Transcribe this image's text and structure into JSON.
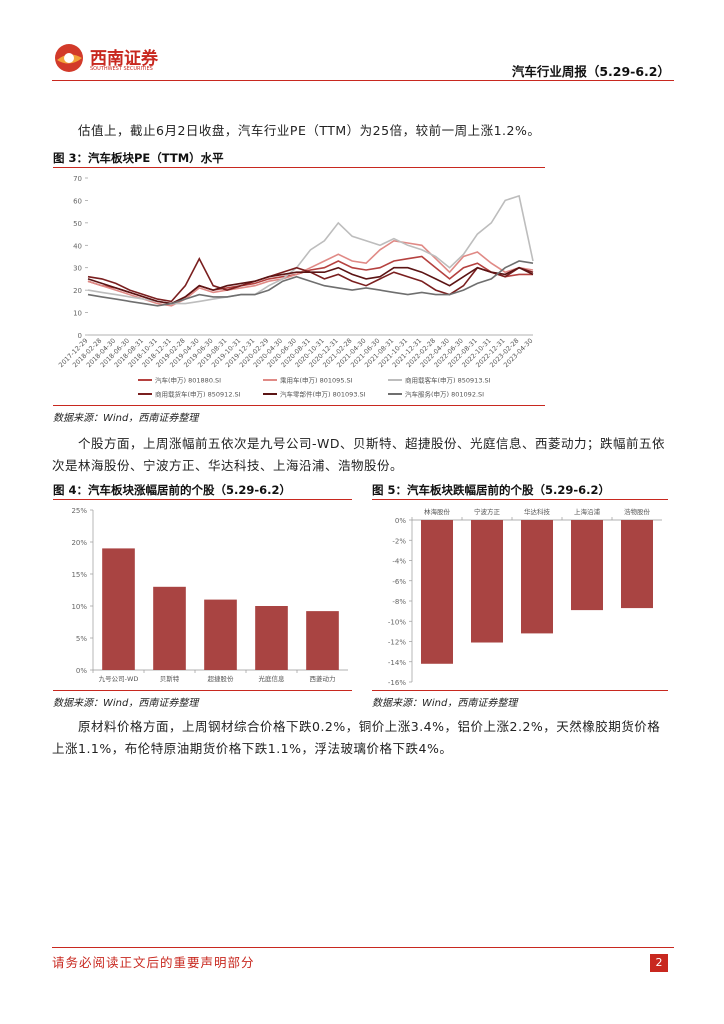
{
  "header": {
    "logo_cn": "西南证券",
    "logo_en": "SOUTHWEST SECURITIES",
    "report_title": "汽车行业周报（5.29-6.2）"
  },
  "paragraphs": [
    "估值上，截止6月2日收盘，汽车行业PE（TTM）为25倍，较前一周上涨1.2%。",
    "个股方面，上周涨幅前五依次是九号公司-WD、贝斯特、超捷股份、光庭信息、西菱动力；跌幅前五依次是林海股份、宁波方正、华达科技、上海沿浦、浩物股份。",
    "原材料价格方面，上周钢材综合价格下跌0.2%，铜价上涨3.4%，铝价上涨2.2%，天然橡胶期货价格上涨1.1%，布伦特原油期货价格下跌1.1%，浮法玻璃价格下跌4%。"
  ],
  "chart_data": [
    {
      "type": "line",
      "title": "图 3：汽车板块PE（TTM）水平",
      "source": "数据来源：Wind，西南证券整理",
      "categories": [
        "2017-12-29",
        "2018-02-28",
        "2018-04-30",
        "2018-06-30",
        "2018-08-31",
        "2018-10-31",
        "2018-12-31",
        "2019-02-28",
        "2019-04-30",
        "2019-06-30",
        "2019-08-31",
        "2019-10-31",
        "2019-12-31",
        "2020-02-29",
        "2020-04-30",
        "2020-06-30",
        "2020-08-31",
        "2020-10-31",
        "2020-12-31",
        "2021-02-28",
        "2021-04-30",
        "2021-06-30",
        "2021-08-31",
        "2021-10-31",
        "2021-12-31",
        "2022-02-28",
        "2022-04-30",
        "2022-06-30",
        "2022-08-31",
        "2022-10-31",
        "2022-12-31",
        "2023-02-28",
        "2023-04-30"
      ],
      "series": [
        {
          "name": "汽车(申万) 801880.SI",
          "color": "#b5413f",
          "values": [
            24,
            22,
            21,
            19,
            17,
            15,
            14,
            17,
            22,
            20,
            21,
            22,
            23,
            25,
            26,
            27,
            29,
            30,
            33,
            30,
            29,
            30,
            33,
            34,
            35,
            30,
            25,
            30,
            32,
            28,
            26,
            27,
            27
          ]
        },
        {
          "name": "乘用车(申万) 801095.SI",
          "color": "#e08a86",
          "values": [
            24,
            22,
            20,
            18,
            16,
            14,
            13,
            16,
            21,
            19,
            20,
            21,
            22,
            24,
            25,
            27,
            30,
            33,
            36,
            33,
            32,
            38,
            42,
            41,
            40,
            34,
            28,
            35,
            37,
            32,
            28,
            30,
            29
          ]
        },
        {
          "name": "商用载客车(申万) 850913.SI",
          "color": "#bdbdbd",
          "values": [
            20,
            19,
            18,
            17,
            16,
            15,
            14,
            14,
            15,
            16,
            17,
            18,
            18,
            22,
            25,
            30,
            38,
            42,
            50,
            44,
            42,
            40,
            43,
            40,
            38,
            35,
            30,
            36,
            45,
            50,
            60,
            62,
            33
          ]
        },
        {
          "name": "商用载货车(申万) 850912.SI",
          "color": "#7a1f1f",
          "values": [
            26,
            25,
            23,
            20,
            18,
            16,
            15,
            22,
            34,
            22,
            20,
            22,
            24,
            26,
            28,
            30,
            28,
            25,
            27,
            24,
            22,
            25,
            28,
            26,
            24,
            20,
            18,
            22,
            30,
            28,
            26,
            30,
            28
          ]
        },
        {
          "name": "汽车零部件(申万) 801093.SI",
          "color": "#5b1414",
          "values": [
            25,
            23,
            21,
            19,
            17,
            15,
            14,
            17,
            22,
            20,
            22,
            23,
            24,
            26,
            27,
            28,
            28,
            28,
            30,
            27,
            25,
            26,
            30,
            30,
            28,
            25,
            22,
            26,
            30,
            28,
            27,
            30,
            27
          ]
        },
        {
          "name": "汽车服务(申万) 801092.SI",
          "color": "#6f6f6f",
          "values": [
            18,
            17,
            16,
            15,
            14,
            13,
            14,
            16,
            18,
            17,
            17,
            18,
            18,
            20,
            24,
            26,
            24,
            22,
            21,
            20,
            21,
            20,
            19,
            18,
            19,
            18,
            18,
            20,
            23,
            25,
            30,
            33,
            32
          ]
        }
      ],
      "ylim": [
        0,
        70
      ],
      "yticks": [
        0,
        10,
        20,
        30,
        40,
        50,
        60,
        70
      ]
    },
    {
      "type": "bar",
      "title": "图 4：汽车板块涨幅居前的个股（5.29-6.2）",
      "source": "数据来源：Wind，西南证券整理",
      "categories": [
        "九号公司-WD",
        "贝斯特",
        "超捷股份",
        "光庭信息",
        "西菱动力"
      ],
      "values": [
        19,
        13,
        11,
        10,
        9.2
      ],
      "color": "#a94442",
      "ylim": [
        0,
        25
      ],
      "yticks": [
        {
          "value": 0,
          "label": "0%"
        },
        {
          "value": 5,
          "label": "5%"
        },
        {
          "value": 10,
          "label": "10%"
        },
        {
          "value": 15,
          "label": "15%"
        },
        {
          "value": 20,
          "label": "20%"
        },
        {
          "value": 25,
          "label": "25%"
        }
      ],
      "xaxis_position": "bottom"
    },
    {
      "type": "bar",
      "title": "图 5：汽车板块跌幅居前的个股（5.29-6.2）",
      "source": "数据来源：Wind，西南证券整理",
      "categories": [
        "林海股份",
        "宁波方正",
        "华达科技",
        "上海沿浦",
        "浩物股份"
      ],
      "values": [
        -14.2,
        -12.1,
        -11.2,
        -8.9,
        -8.7
      ],
      "color": "#a94442",
      "ylim": [
        -16,
        0
      ],
      "yticks": [
        {
          "value": 0,
          "label": "0%"
        },
        {
          "value": -2,
          "label": "-2%"
        },
        {
          "value": -4,
          "label": "-4%"
        },
        {
          "value": -6,
          "label": "-6%"
        },
        {
          "value": -8,
          "label": "-8%"
        },
        {
          "value": -10,
          "label": "-10%"
        },
        {
          "value": -12,
          "label": "-12%"
        },
        {
          "value": -14,
          "label": "-14%"
        },
        {
          "value": -16,
          "label": "-16%"
        }
      ],
      "xaxis_position": "top"
    }
  ],
  "footer": {
    "disclaimer": "请务必阅读正文后的重要声明部分",
    "page_number": "2"
  }
}
